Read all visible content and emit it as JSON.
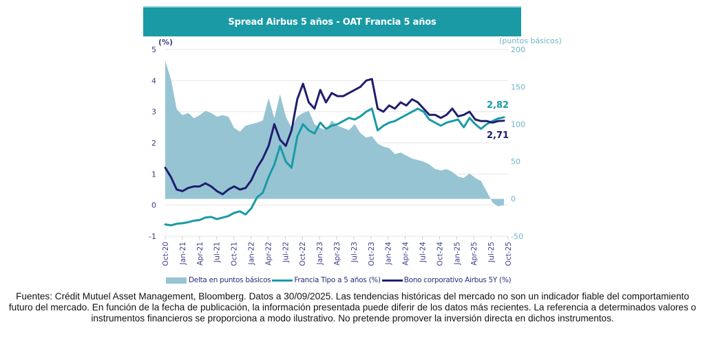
{
  "title": "Spread Airbus 5 años - OAT Francia 5 años",
  "footnote": "Fuentes: Crédit Mutuel Asset Management, Bloomberg. Datos a 30/09/2025. Las tendencias históricas del mercado no son un indicador fiable del comportamiento futuro del mercado. En función de la fecha de publicación, la información presentada puede diferir de los datos más recientes. La referencia a determinados valores o instrumentos financieros se proporciona a modo ilustrativo. No pretende promover la inversión directa en dichos instrumentos.",
  "colors": {
    "title_bg": "#1a9aa5",
    "delta_area": "#96c4d3",
    "francia_line": "#1a9aa5",
    "airbus_line": "#1f1d6e",
    "left_axis_text": "#3b3d8a",
    "right_axis_text": "#6fb3c9",
    "grid": "#e6e6e6"
  },
  "chart_data": {
    "type": "line",
    "title": "Spread Airbus 5 años - OAT Francia 5 años",
    "xlabel": "",
    "ylabel": "(%)",
    "ylabel_right": "(puntos básicos)",
    "ylim": [
      -1,
      5
    ],
    "ylim_right": [
      -50,
      200
    ],
    "yticks": [
      -1,
      0,
      1,
      2,
      3,
      4,
      5
    ],
    "yticks_right": [
      -50,
      0,
      50,
      100,
      150,
      200
    ],
    "grid": true,
    "legend_position": "bottom",
    "x_tick_labels": [
      "Oct-20",
      "Jan-21",
      "Apr-21",
      "Jul-21",
      "Oct-21",
      "Jan-22",
      "Apr-22",
      "Jul-22",
      "Oct-22",
      "Jan-23",
      "Apr-23",
      "Jul-23",
      "Oct-23",
      "Jan-24",
      "Apr-24",
      "Jul-24",
      "Oct-24",
      "Jan-25",
      "Apr-25",
      "Jul-25",
      "Oct-25"
    ],
    "x": [
      "2020-10",
      "2020-11",
      "2020-12",
      "2021-01",
      "2021-02",
      "2021-03",
      "2021-04",
      "2021-05",
      "2021-06",
      "2021-07",
      "2021-08",
      "2021-09",
      "2021-10",
      "2021-11",
      "2021-12",
      "2022-01",
      "2022-02",
      "2022-03",
      "2022-04",
      "2022-05",
      "2022-06",
      "2022-07",
      "2022-08",
      "2022-09",
      "2022-10",
      "2022-11",
      "2022-12",
      "2023-01",
      "2023-02",
      "2023-03",
      "2023-04",
      "2023-05",
      "2023-06",
      "2023-07",
      "2023-08",
      "2023-09",
      "2023-10",
      "2023-11",
      "2023-12",
      "2024-01",
      "2024-02",
      "2024-03",
      "2024-04",
      "2024-05",
      "2024-06",
      "2024-07",
      "2024-08",
      "2024-09",
      "2024-10",
      "2024-11",
      "2024-12",
      "2025-01",
      "2025-02",
      "2025-03",
      "2025-04",
      "2025-05",
      "2025-06",
      "2025-07",
      "2025-08",
      "2025-09"
    ],
    "series": [
      {
        "name": "Delta en puntos básicos",
        "axis": "right",
        "kind": "area",
        "values": [
          185,
          160,
          120,
          112,
          115,
          108,
          112,
          118,
          115,
          110,
          112,
          110,
          95,
          90,
          98,
          100,
          102,
          105,
          135,
          108,
          140,
          110,
          95,
          110,
          115,
          118,
          100,
          95,
          92,
          105,
          98,
          95,
          92,
          100,
          88,
          82,
          84,
          74,
          70,
          68,
          60,
          62,
          58,
          54,
          52,
          50,
          46,
          40,
          38,
          40,
          36,
          30,
          28,
          34,
          28,
          24,
          10,
          -5,
          -10,
          -8
        ]
      },
      {
        "name": "Francia Tipo a 5 años (%)",
        "axis": "left",
        "kind": "line",
        "values": [
          -0.62,
          -0.65,
          -0.6,
          -0.58,
          -0.55,
          -0.5,
          -0.48,
          -0.4,
          -0.38,
          -0.45,
          -0.4,
          -0.35,
          -0.25,
          -0.2,
          -0.3,
          -0.1,
          0.25,
          0.4,
          0.9,
          1.3,
          1.9,
          1.4,
          1.2,
          2.2,
          2.6,
          2.4,
          2.3,
          2.65,
          2.45,
          2.55,
          2.6,
          2.7,
          2.8,
          2.75,
          2.85,
          3.0,
          3.1,
          2.4,
          2.55,
          2.65,
          2.7,
          2.8,
          2.9,
          3.0,
          3.1,
          3.0,
          2.75,
          2.65,
          2.55,
          2.65,
          2.7,
          2.75,
          2.5,
          2.8,
          2.6,
          2.45,
          2.6,
          2.7,
          2.78,
          2.82
        ]
      },
      {
        "name": "Bono corporativo Airbus 5Y (%)",
        "axis": "left",
        "kind": "line",
        "values": [
          1.2,
          0.9,
          0.5,
          0.45,
          0.55,
          0.6,
          0.6,
          0.7,
          0.6,
          0.45,
          0.35,
          0.5,
          0.6,
          0.5,
          0.55,
          0.8,
          1.2,
          1.5,
          1.9,
          2.6,
          2.1,
          1.9,
          2.4,
          3.4,
          3.9,
          3.3,
          3.1,
          3.7,
          3.3,
          3.6,
          3.5,
          3.5,
          3.6,
          3.7,
          3.8,
          4.0,
          4.05,
          3.1,
          3.0,
          3.2,
          3.1,
          3.3,
          3.2,
          3.4,
          3.3,
          3.1,
          2.9,
          2.9,
          2.8,
          2.9,
          3.1,
          2.85,
          2.9,
          3.0,
          2.75,
          2.7,
          2.7,
          2.65,
          2.7,
          2.71
        ]
      }
    ],
    "annotations": [
      {
        "text": "2,82",
        "series": "Francia Tipo a 5 años (%)",
        "x": "2025-09"
      },
      {
        "text": "2,71",
        "series": "Bono corporativo Airbus 5Y (%)",
        "x": "2025-09"
      }
    ]
  }
}
